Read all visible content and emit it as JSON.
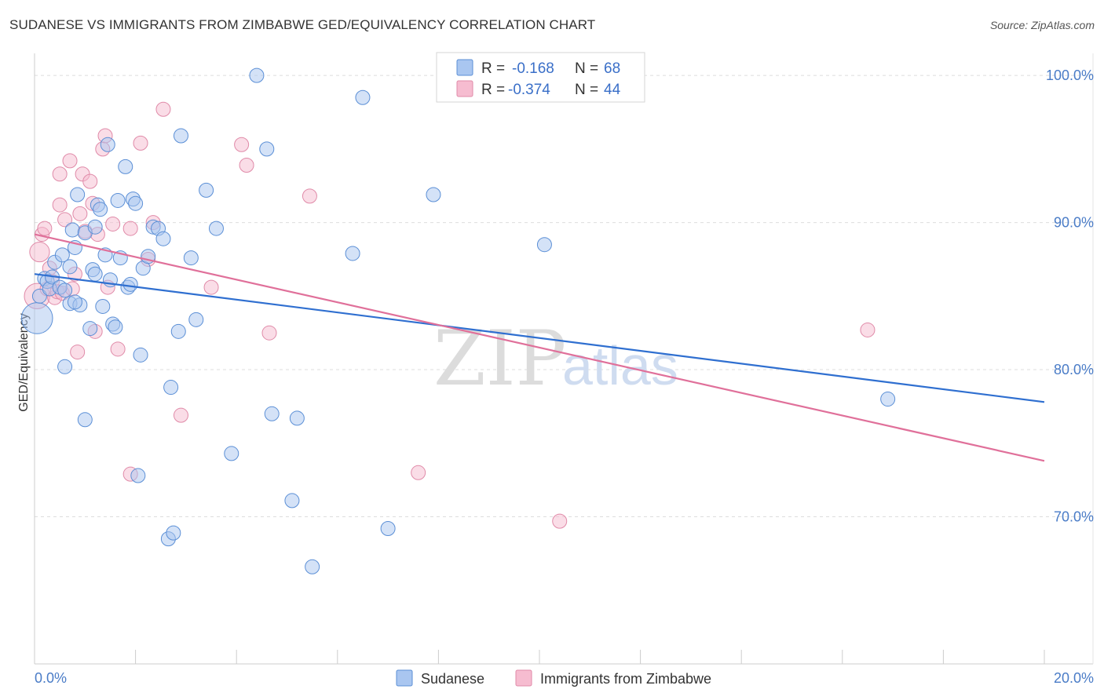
{
  "title": "SUDANESE VS IMMIGRANTS FROM ZIMBABWE GED/EQUIVALENCY CORRELATION CHART",
  "source": "Source: ZipAtlas.com",
  "watermark": {
    "zip": "ZIP",
    "atlas": "atlas"
  },
  "colors": {
    "blue_fill": "#a9c6f0",
    "blue_stroke": "#5b8fd6",
    "blue_line": "#2f6fd0",
    "pink_fill": "#f6bcd0",
    "pink_stroke": "#e08aa8",
    "pink_line": "#e0709a",
    "grid": "#dddddd",
    "tick_text": "#4a7cc7"
  },
  "legend": {
    "rows": [
      {
        "r_label": "R =",
        "r_value": "-0.168",
        "n_label": "N =",
        "n_value": "68"
      },
      {
        "r_label": "R =",
        "r_value": "-0.374",
        "n_label": "N =",
        "n_value": "44"
      }
    ]
  },
  "bottom_legend": [
    "Sudanese",
    "Immigrants from Zimbabwe"
  ],
  "chart_data": {
    "type": "scatter",
    "title": "SUDANESE VS IMMIGRANTS FROM ZIMBABWE GED/EQUIVALENCY CORRELATION CHART",
    "xlabel": "",
    "ylabel": "GED/Equivalency",
    "xlim": [
      0,
      20
    ],
    "ylim": [
      60,
      101.5
    ],
    "x_tick_labels": [
      {
        "value": 0,
        "label": "0.0%"
      },
      {
        "value": 20,
        "label": "20.0%"
      }
    ],
    "y_tick_labels": [
      {
        "value": 70,
        "label": "70.0%"
      },
      {
        "value": 80,
        "label": "80.0%"
      },
      {
        "value": 90,
        "label": "90.0%"
      },
      {
        "value": 100,
        "label": "100.0%"
      }
    ],
    "y_gridlines": [
      70,
      80,
      90,
      100
    ],
    "x_minor_ticks": [
      0,
      2,
      4,
      6,
      8,
      10,
      12,
      14,
      16,
      18,
      20
    ],
    "series": [
      {
        "name": "Sudanese",
        "color": "blue",
        "R": -0.168,
        "N": 68,
        "trend": {
          "x": [
            0,
            20
          ],
          "y": [
            86.5,
            77.8
          ]
        },
        "points": [
          [
            0.05,
            83.5,
            2.2
          ],
          [
            0.1,
            85.0,
            1
          ],
          [
            0.2,
            86.2,
            1
          ],
          [
            0.25,
            86.0,
            1
          ],
          [
            0.3,
            85.5,
            1
          ],
          [
            0.35,
            86.3,
            1
          ],
          [
            0.4,
            87.3,
            1
          ],
          [
            0.5,
            85.6,
            1
          ],
          [
            0.55,
            87.8,
            1
          ],
          [
            0.6,
            85.4,
            1
          ],
          [
            0.7,
            87.0,
            1
          ],
          [
            0.7,
            84.5,
            1
          ],
          [
            0.75,
            89.5,
            1
          ],
          [
            0.8,
            88.3,
            1
          ],
          [
            0.6,
            80.2,
            1
          ],
          [
            0.85,
            91.9,
            1
          ],
          [
            0.9,
            84.4,
            1
          ],
          [
            1.0,
            89.3,
            1
          ],
          [
            1.1,
            82.8,
            1
          ],
          [
            1.15,
            86.8,
            1
          ],
          [
            1.2,
            86.5,
            1
          ],
          [
            1.2,
            89.7,
            1
          ],
          [
            1.25,
            91.2,
            1
          ],
          [
            1.3,
            90.9,
            1
          ],
          [
            1.35,
            84.3,
            1
          ],
          [
            1.4,
            87.8,
            1
          ],
          [
            1.45,
            95.3,
            1
          ],
          [
            1.5,
            86.1,
            1
          ],
          [
            1.55,
            83.1,
            1
          ],
          [
            1.6,
            82.9,
            1
          ],
          [
            1.65,
            91.5,
            1
          ],
          [
            1.7,
            87.6,
            1
          ],
          [
            1.8,
            93.8,
            1
          ],
          [
            1.85,
            85.6,
            1
          ],
          [
            1.9,
            85.8,
            1
          ],
          [
            1.95,
            91.6,
            1
          ],
          [
            2.0,
            91.3,
            1
          ],
          [
            2.1,
            81.0,
            1
          ],
          [
            2.15,
            86.9,
            1
          ],
          [
            2.25,
            87.7,
            1
          ],
          [
            2.35,
            89.7,
            1
          ],
          [
            2.45,
            89.6,
            1
          ],
          [
            2.55,
            88.9,
            1
          ],
          [
            2.7,
            78.8,
            1
          ],
          [
            2.85,
            82.6,
            1
          ],
          [
            2.9,
            95.9,
            1
          ],
          [
            3.1,
            87.6,
            1
          ],
          [
            3.2,
            83.4,
            1
          ],
          [
            3.4,
            92.2,
            1
          ],
          [
            3.6,
            89.6,
            1
          ],
          [
            3.9,
            74.3,
            1
          ],
          [
            4.4,
            100.0,
            1
          ],
          [
            4.6,
            95.0,
            1
          ],
          [
            4.7,
            77.0,
            1
          ],
          [
            5.1,
            71.1,
            1
          ],
          [
            5.2,
            76.7,
            1
          ],
          [
            5.5,
            66.6,
            1
          ],
          [
            6.3,
            87.9,
            1
          ],
          [
            6.5,
            98.5,
            1
          ],
          [
            7.0,
            69.2,
            1
          ],
          [
            7.9,
            91.9,
            1
          ],
          [
            10.1,
            88.5,
            1
          ],
          [
            16.9,
            78.0,
            1
          ],
          [
            1.0,
            76.6,
            1
          ],
          [
            2.05,
            72.8,
            1
          ],
          [
            2.65,
            68.5,
            1
          ],
          [
            2.75,
            68.9,
            1
          ],
          [
            0.8,
            84.6,
            1
          ]
        ]
      },
      {
        "name": "Immigrants from Zimbabwe",
        "color": "pink",
        "R": -0.374,
        "N": 44,
        "trend": {
          "x": [
            0,
            20
          ],
          "y": [
            89.2,
            73.8
          ]
        },
        "points": [
          [
            0.05,
            85.0,
            1.8
          ],
          [
            0.1,
            88.0,
            1.4
          ],
          [
            0.15,
            89.2,
            1
          ],
          [
            0.2,
            89.6,
            1
          ],
          [
            0.25,
            85.5,
            1
          ],
          [
            0.3,
            86.9,
            1
          ],
          [
            0.35,
            86.0,
            1
          ],
          [
            0.4,
            84.9,
            1
          ],
          [
            0.45,
            85.3,
            1
          ],
          [
            0.5,
            91.2,
            1
          ],
          [
            0.5,
            93.3,
            1
          ],
          [
            0.55,
            85.2,
            1
          ],
          [
            0.6,
            90.2,
            1
          ],
          [
            0.7,
            94.2,
            1
          ],
          [
            0.75,
            85.5,
            1
          ],
          [
            0.8,
            86.5,
            1
          ],
          [
            0.85,
            81.2,
            1
          ],
          [
            0.9,
            90.6,
            1
          ],
          [
            0.95,
            93.3,
            1
          ],
          [
            1.0,
            89.4,
            1
          ],
          [
            1.1,
            92.8,
            1
          ],
          [
            1.15,
            91.3,
            1
          ],
          [
            1.2,
            82.6,
            1
          ],
          [
            1.25,
            89.2,
            1
          ],
          [
            1.35,
            95.0,
            1
          ],
          [
            1.4,
            95.9,
            1
          ],
          [
            1.45,
            85.6,
            1
          ],
          [
            1.55,
            89.9,
            1
          ],
          [
            1.65,
            81.4,
            1
          ],
          [
            1.9,
            72.9,
            1
          ],
          [
            1.9,
            89.6,
            1
          ],
          [
            2.1,
            95.4,
            1
          ],
          [
            2.25,
            87.5,
            1
          ],
          [
            2.35,
            90.0,
            1
          ],
          [
            2.55,
            97.7,
            1
          ],
          [
            2.9,
            76.9,
            1
          ],
          [
            3.5,
            85.6,
            1
          ],
          [
            4.1,
            95.3,
            1
          ],
          [
            4.2,
            93.9,
            1
          ],
          [
            4.65,
            82.5,
            1
          ],
          [
            5.45,
            91.8,
            1
          ],
          [
            7.6,
            73.0,
            1
          ],
          [
            10.4,
            69.7,
            1
          ],
          [
            16.5,
            82.7,
            1
          ]
        ]
      }
    ]
  }
}
